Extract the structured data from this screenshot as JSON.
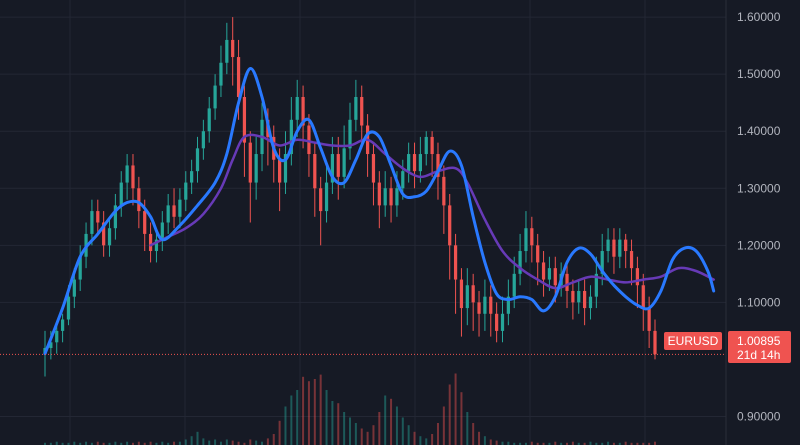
{
  "chart_data": {
    "type": "candlestick",
    "symbol": "EURUSD",
    "last_price": "1.00895",
    "countdown": "21d 14h",
    "y_ticks": [
      "0.90000",
      "1.10000",
      "1.20000",
      "1.30000",
      "1.40000",
      "1.50000",
      "1.60000"
    ],
    "ylim": [
      0.85,
      1.63
    ],
    "grid": true,
    "colors": {
      "background": "#161a25",
      "grid": "#232734",
      "up": "#26a69a",
      "down": "#ef5350",
      "ma_fast": "#2979ff",
      "ma_slow": "#673ab7",
      "price_line": "#ef5350",
      "axis_text": "#b2b5be"
    },
    "series": [
      {
        "name": "",
        "type": "moving-average-fast",
        "color": "#2979ff",
        "points": [
          [
            0,
            1.01
          ],
          [
            3,
            1.09
          ],
          [
            6,
            1.18
          ],
          [
            9,
            1.22
          ],
          [
            12,
            1.26
          ],
          [
            14,
            1.275
          ],
          [
            16,
            1.275
          ],
          [
            18,
            1.25
          ],
          [
            20,
            1.21
          ],
          [
            23,
            1.235
          ],
          [
            26,
            1.27
          ],
          [
            29,
            1.31
          ],
          [
            31,
            1.36
          ],
          [
            33,
            1.45
          ],
          [
            35,
            1.51
          ],
          [
            37,
            1.46
          ],
          [
            39,
            1.37
          ],
          [
            41,
            1.35
          ],
          [
            43,
            1.4
          ],
          [
            45,
            1.42
          ],
          [
            47,
            1.37
          ],
          [
            49,
            1.32
          ],
          [
            51,
            1.31
          ],
          [
            53,
            1.35
          ],
          [
            55,
            1.395
          ],
          [
            57,
            1.39
          ],
          [
            59,
            1.34
          ],
          [
            61,
            1.29
          ],
          [
            63,
            1.285
          ],
          [
            65,
            1.295
          ],
          [
            67,
            1.33
          ],
          [
            69,
            1.365
          ],
          [
            71,
            1.34
          ],
          [
            73,
            1.25
          ],
          [
            75,
            1.17
          ],
          [
            77,
            1.115
          ],
          [
            79,
            1.105
          ],
          [
            81,
            1.11
          ],
          [
            83,
            1.105
          ],
          [
            85,
            1.085
          ],
          [
            87,
            1.11
          ],
          [
            89,
            1.17
          ],
          [
            91,
            1.195
          ],
          [
            93,
            1.185
          ],
          [
            95,
            1.155
          ],
          [
            97,
            1.13
          ],
          [
            99,
            1.11
          ],
          [
            101,
            1.095
          ],
          [
            103,
            1.09
          ],
          [
            105,
            1.12
          ],
          [
            107,
            1.175
          ],
          [
            109,
            1.195
          ],
          [
            111,
            1.19
          ],
          [
            113,
            1.155
          ],
          [
            114,
            1.12
          ]
        ]
      },
      {
        "name": "",
        "type": "moving-average-slow",
        "color": "#673ab7",
        "points": [
          [
            18,
            1.2
          ],
          [
            21,
            1.215
          ],
          [
            24,
            1.23
          ],
          [
            27,
            1.255
          ],
          [
            30,
            1.3
          ],
          [
            32,
            1.35
          ],
          [
            34,
            1.39
          ],
          [
            37,
            1.39
          ],
          [
            40,
            1.375
          ],
          [
            43,
            1.385
          ],
          [
            46,
            1.38
          ],
          [
            49,
            1.375
          ],
          [
            52,
            1.375
          ],
          [
            55,
            1.385
          ],
          [
            58,
            1.36
          ],
          [
            61,
            1.335
          ],
          [
            64,
            1.32
          ],
          [
            67,
            1.33
          ],
          [
            70,
            1.335
          ],
          [
            72,
            1.31
          ],
          [
            75,
            1.245
          ],
          [
            78,
            1.19
          ],
          [
            81,
            1.16
          ],
          [
            84,
            1.14
          ],
          [
            87,
            1.125
          ],
          [
            90,
            1.135
          ],
          [
            93,
            1.145
          ],
          [
            96,
            1.14
          ],
          [
            99,
            1.135
          ],
          [
            102,
            1.14
          ],
          [
            105,
            1.145
          ],
          [
            108,
            1.16
          ],
          [
            111,
            1.155
          ],
          [
            114,
            1.14
          ]
        ]
      }
    ],
    "candles": [
      [
        1.01,
        1.02,
        0.97,
        1.05
      ],
      [
        1.02,
        1.03,
        1,
        1.05
      ],
      [
        1.03,
        1.05,
        1.01,
        1.06
      ],
      [
        1.05,
        1.07,
        1.03,
        1.08
      ],
      [
        1.07,
        1.11,
        1.06,
        1.13
      ],
      [
        1.11,
        1.14,
        1.09,
        1.16
      ],
      [
        1.14,
        1.18,
        1.12,
        1.2
      ],
      [
        1.18,
        1.22,
        1.16,
        1.24
      ],
      [
        1.22,
        1.26,
        1.2,
        1.28
      ],
      [
        1.26,
        1.24,
        1.22,
        1.28
      ],
      [
        1.24,
        1.2,
        1.18,
        1.26
      ],
      [
        1.2,
        1.23,
        1.18,
        1.25
      ],
      [
        1.23,
        1.27,
        1.21,
        1.29
      ],
      [
        1.27,
        1.31,
        1.25,
        1.33
      ],
      [
        1.31,
        1.34,
        1.28,
        1.36
      ],
      [
        1.34,
        1.3,
        1.27,
        1.36
      ],
      [
        1.3,
        1.26,
        1.23,
        1.32
      ],
      [
        1.26,
        1.22,
        1.19,
        1.28
      ],
      [
        1.22,
        1.19,
        1.17,
        1.24
      ],
      [
        1.19,
        1.21,
        1.17,
        1.23
      ],
      [
        1.21,
        1.24,
        1.19,
        1.26
      ],
      [
        1.24,
        1.27,
        1.22,
        1.29
      ],
      [
        1.27,
        1.25,
        1.23,
        1.3
      ],
      [
        1.25,
        1.28,
        1.23,
        1.3
      ],
      [
        1.28,
        1.31,
        1.26,
        1.33
      ],
      [
        1.31,
        1.33,
        1.29,
        1.35
      ],
      [
        1.33,
        1.37,
        1.31,
        1.39
      ],
      [
        1.37,
        1.4,
        1.35,
        1.42
      ],
      [
        1.4,
        1.44,
        1.38,
        1.46
      ],
      [
        1.44,
        1.48,
        1.42,
        1.5
      ],
      [
        1.48,
        1.52,
        1.46,
        1.55
      ],
      [
        1.52,
        1.56,
        1.5,
        1.59
      ],
      [
        1.56,
        1.53,
        1.48,
        1.6
      ],
      [
        1.53,
        1.46,
        1.42,
        1.56
      ],
      [
        1.46,
        1.38,
        1.32,
        1.48
      ],
      [
        1.38,
        1.31,
        1.24,
        1.4
      ],
      [
        1.31,
        1.36,
        1.28,
        1.39
      ],
      [
        1.36,
        1.42,
        1.33,
        1.45
      ],
      [
        1.42,
        1.39,
        1.34,
        1.44
      ],
      [
        1.39,
        1.35,
        1.31,
        1.41
      ],
      [
        1.35,
        1.31,
        1.26,
        1.37
      ],
      [
        1.31,
        1.36,
        1.29,
        1.4
      ],
      [
        1.36,
        1.42,
        1.34,
        1.46
      ],
      [
        1.42,
        1.46,
        1.39,
        1.49
      ],
      [
        1.46,
        1.41,
        1.37,
        1.48
      ],
      [
        1.41,
        1.36,
        1.32,
        1.43
      ],
      [
        1.36,
        1.3,
        1.25,
        1.38
      ],
      [
        1.3,
        1.26,
        1.2,
        1.32
      ],
      [
        1.26,
        1.31,
        1.24,
        1.34
      ],
      [
        1.31,
        1.36,
        1.29,
        1.39
      ],
      [
        1.36,
        1.32,
        1.28,
        1.39
      ],
      [
        1.32,
        1.37,
        1.3,
        1.41
      ],
      [
        1.37,
        1.42,
        1.35,
        1.45
      ],
      [
        1.42,
        1.46,
        1.4,
        1.49
      ],
      [
        1.46,
        1.41,
        1.37,
        1.48
      ],
      [
        1.41,
        1.36,
        1.32,
        1.43
      ],
      [
        1.36,
        1.31,
        1.27,
        1.38
      ],
      [
        1.31,
        1.27,
        1.23,
        1.33
      ],
      [
        1.27,
        1.3,
        1.25,
        1.33
      ],
      [
        1.3,
        1.27,
        1.24,
        1.32
      ],
      [
        1.27,
        1.3,
        1.25,
        1.33
      ],
      [
        1.3,
        1.33,
        1.28,
        1.35
      ],
      [
        1.33,
        1.36,
        1.31,
        1.38
      ],
      [
        1.36,
        1.33,
        1.3,
        1.38
      ],
      [
        1.33,
        1.36,
        1.31,
        1.39
      ],
      [
        1.36,
        1.39,
        1.34,
        1.4
      ],
      [
        1.39,
        1.36,
        1.32,
        1.4
      ],
      [
        1.36,
        1.32,
        1.28,
        1.38
      ],
      [
        1.32,
        1.27,
        1.22,
        1.34
      ],
      [
        1.27,
        1.2,
        1.14,
        1.29
      ],
      [
        1.2,
        1.14,
        1.08,
        1.22
      ],
      [
        1.14,
        1.09,
        1.04,
        1.16
      ],
      [
        1.09,
        1.13,
        1.06,
        1.16
      ],
      [
        1.13,
        1.1,
        1.05,
        1.15
      ],
      [
        1.1,
        1.08,
        1.04,
        1.12
      ],
      [
        1.08,
        1.11,
        1.05,
        1.14
      ],
      [
        1.11,
        1.08,
        1.04,
        1.13
      ],
      [
        1.08,
        1.05,
        1.03,
        1.1
      ],
      [
        1.05,
        1.08,
        1.03,
        1.11
      ],
      [
        1.08,
        1.11,
        1.06,
        1.14
      ],
      [
        1.11,
        1.15,
        1.09,
        1.18
      ],
      [
        1.15,
        1.19,
        1.13,
        1.22
      ],
      [
        1.19,
        1.23,
        1.17,
        1.26
      ],
      [
        1.23,
        1.2,
        1.17,
        1.25
      ],
      [
        1.2,
        1.17,
        1.13,
        1.22
      ],
      [
        1.17,
        1.14,
        1.11,
        1.19
      ],
      [
        1.14,
        1.16,
        1.12,
        1.18
      ],
      [
        1.16,
        1.13,
        1.1,
        1.18
      ],
      [
        1.13,
        1.15,
        1.11,
        1.17
      ],
      [
        1.15,
        1.12,
        1.09,
        1.17
      ],
      [
        1.12,
        1.1,
        1.07,
        1.14
      ],
      [
        1.1,
        1.12,
        1.08,
        1.14
      ],
      [
        1.12,
        1.09,
        1.06,
        1.14
      ],
      [
        1.09,
        1.11,
        1.07,
        1.13
      ],
      [
        1.11,
        1.15,
        1.09,
        1.18
      ],
      [
        1.15,
        1.19,
        1.13,
        1.22
      ],
      [
        1.19,
        1.21,
        1.17,
        1.23
      ],
      [
        1.21,
        1.18,
        1.15,
        1.23
      ],
      [
        1.18,
        1.21,
        1.16,
        1.23
      ],
      [
        1.21,
        1.19,
        1.16,
        1.22
      ],
      [
        1.19,
        1.16,
        1.13,
        1.21
      ],
      [
        1.16,
        1.13,
        1.09,
        1.18
      ],
      [
        1.13,
        1.09,
        1.05,
        1.15
      ],
      [
        1.09,
        1.05,
        1.02,
        1.11
      ],
      [
        1.05,
        1.009,
        1,
        1.07
      ]
    ],
    "volume": [
      0.02,
      0.02,
      0.03,
      0.02,
      0.02,
      0.03,
      0.02,
      0.03,
      0.02,
      0.03,
      0.02,
      0.02,
      0.03,
      0.02,
      0.03,
      0.02,
      0.03,
      0.02,
      0.03,
      0.02,
      0.03,
      0.02,
      0.03,
      0.03,
      0.05,
      0.08,
      0.12,
      0.06,
      0.04,
      0.05,
      0.03,
      0.05,
      0.04,
      0.03,
      0.02,
      0.05,
      0.04,
      0.03,
      0.06,
      0.1,
      0.22,
      0.35,
      0.45,
      0.5,
      0.62,
      0.58,
      0.6,
      0.64,
      0.5,
      0.4,
      0.38,
      0.3,
      0.25,
      0.2,
      0.15,
      0.12,
      0.18,
      0.3,
      0.45,
      0.42,
      0.35,
      0.25,
      0.18,
      0.12,
      0.08,
      0.06,
      0.1,
      0.2,
      0.35,
      0.55,
      0.65,
      0.48,
      0.3,
      0.2,
      0.12,
      0.08,
      0.05,
      0.04,
      0.03,
      0.03,
      0.02,
      0.02,
      0.02,
      0.03,
      0.02,
      0.02,
      0.02,
      0.03,
      0.02,
      0.02,
      0.03,
      0.02,
      0.02,
      0.03,
      0.02,
      0.02,
      0.03,
      0.02,
      0.02,
      0.03,
      0.02,
      0.02,
      0.02,
      0.02,
      0.03
    ]
  }
}
